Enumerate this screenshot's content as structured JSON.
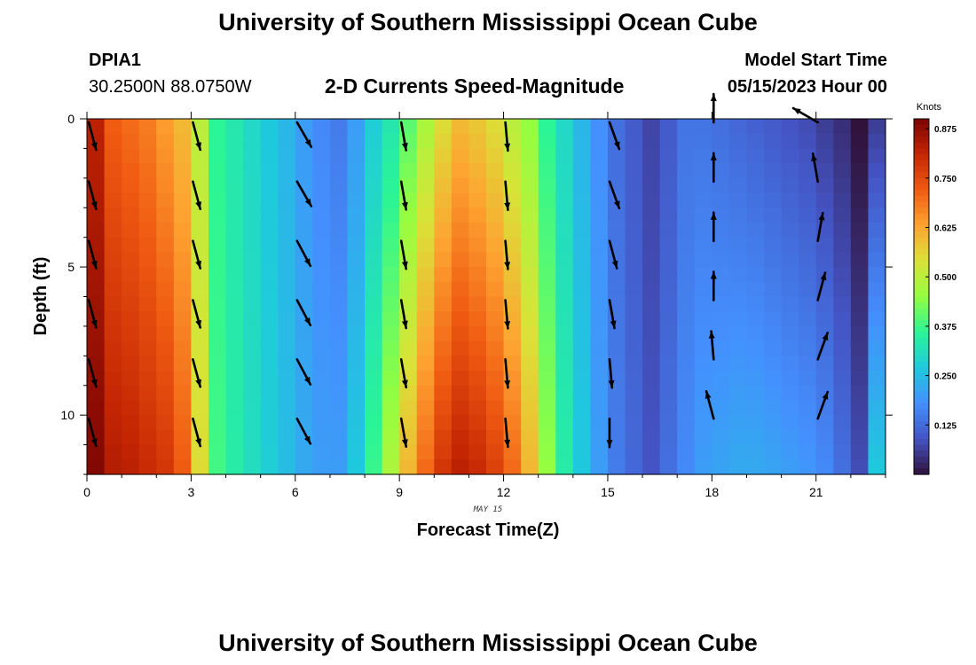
{
  "header": {
    "title": "University of Southern Mississippi Ocean Cube",
    "station_id": "DPIA1",
    "coordinates": "30.2500N  88.0750W",
    "subtitle": "2-D Currents Speed-Magnitude",
    "model_start_label": "Model Start Time",
    "model_start_value": "05/15/2023 Hour 00"
  },
  "footer": {
    "title": "University of Southern Mississippi Ocean Cube"
  },
  "chart_data": {
    "type": "heatmap",
    "title": "2-D Currents Speed-Magnitude",
    "xlabel": "Forecast Time(Z)",
    "ylabel": "Depth (ft)",
    "date_label": "MAY 15",
    "colorbar_label": "Knots",
    "xlim": [
      0,
      23
    ],
    "ylim": [
      0,
      12
    ],
    "y_inverted": true,
    "x_ticks": [
      0,
      3,
      6,
      9,
      12,
      15,
      18,
      21
    ],
    "y_ticks": [
      0,
      5,
      10
    ],
    "colorbar_ticks": [
      0.125,
      0.25,
      0.375,
      0.5,
      0.625,
      0.75,
      0.875
    ],
    "colorbar_range": [
      0.0,
      0.9
    ],
    "colormap": [
      "#30123b",
      "#4454c4",
      "#4490fe",
      "#1fc9dd",
      "#2af597",
      "#95fe40",
      "#dae238",
      "#fea331",
      "#f05b12",
      "#c42503",
      "#7a0403"
    ],
    "depths": [
      0,
      0.5,
      1,
      1.5,
      2,
      2.5,
      3,
      3.5,
      4,
      4.5,
      5,
      5.5,
      6,
      6.5,
      7,
      7.5,
      8,
      8.5,
      9,
      9.5,
      10,
      10.5,
      11,
      11.5
    ],
    "hours": [
      0,
      0.5,
      1,
      1.5,
      2,
      2.5,
      3,
      3.5,
      4,
      4.5,
      5,
      5.5,
      6,
      6.5,
      7,
      7.5,
      8,
      8.5,
      9,
      9.5,
      10,
      10.5,
      11,
      11.5,
      12,
      12.5,
      13,
      13.5,
      14,
      14.5,
      15,
      15.5,
      16,
      16.5,
      17,
      17.5,
      18,
      18.5,
      19,
      19.5,
      20,
      20.5,
      21,
      21.5,
      22,
      22.5,
      23
    ],
    "speed_profile_surface": [
      0.82,
      0.72,
      0.7,
      0.68,
      0.64,
      0.6,
      0.5,
      0.36,
      0.33,
      0.3,
      0.27,
      0.24,
      0.2,
      0.17,
      0.15,
      0.2,
      0.28,
      0.33,
      0.4,
      0.48,
      0.55,
      0.6,
      0.58,
      0.55,
      0.5,
      0.45,
      0.36,
      0.3,
      0.24,
      0.18,
      0.13,
      0.1,
      0.07,
      0.1,
      0.14,
      0.14,
      0.13,
      0.12,
      0.11,
      0.1,
      0.09,
      0.08,
      0.06,
      0.04,
      0.0,
      0.06,
      0.25
    ],
    "speed_profile_bottom": [
      0.89,
      0.83,
      0.82,
      0.8,
      0.78,
      0.72,
      0.55,
      0.38,
      0.34,
      0.31,
      0.28,
      0.25,
      0.22,
      0.2,
      0.2,
      0.27,
      0.37,
      0.48,
      0.6,
      0.7,
      0.78,
      0.82,
      0.8,
      0.76,
      0.7,
      0.6,
      0.45,
      0.34,
      0.27,
      0.2,
      0.15,
      0.12,
      0.09,
      0.13,
      0.17,
      0.2,
      0.21,
      0.22,
      0.22,
      0.21,
      0.2,
      0.19,
      0.17,
      0.13,
      0.08,
      0.27,
      0.35
    ],
    "vector_hours": [
      0,
      3,
      6,
      9,
      12,
      15,
      18,
      21
    ],
    "vector_depths": [
      0,
      2,
      4,
      6,
      8,
      10
    ],
    "vector_directions_deg": [
      [
        165,
        165,
        165,
        165,
        165,
        165
      ],
      [
        165,
        165,
        165,
        165,
        165,
        165
      ],
      [
        150,
        150,
        152,
        152,
        152,
        152
      ],
      [
        170,
        170,
        170,
        170,
        170,
        170
      ],
      [
        175,
        175,
        175,
        175,
        175,
        175
      ],
      [
        160,
        160,
        165,
        170,
        175,
        180
      ],
      [
        0,
        0,
        0,
        0,
        355,
        345
      ],
      [
        300,
        350,
        10,
        15,
        20,
        20
      ]
    ]
  }
}
